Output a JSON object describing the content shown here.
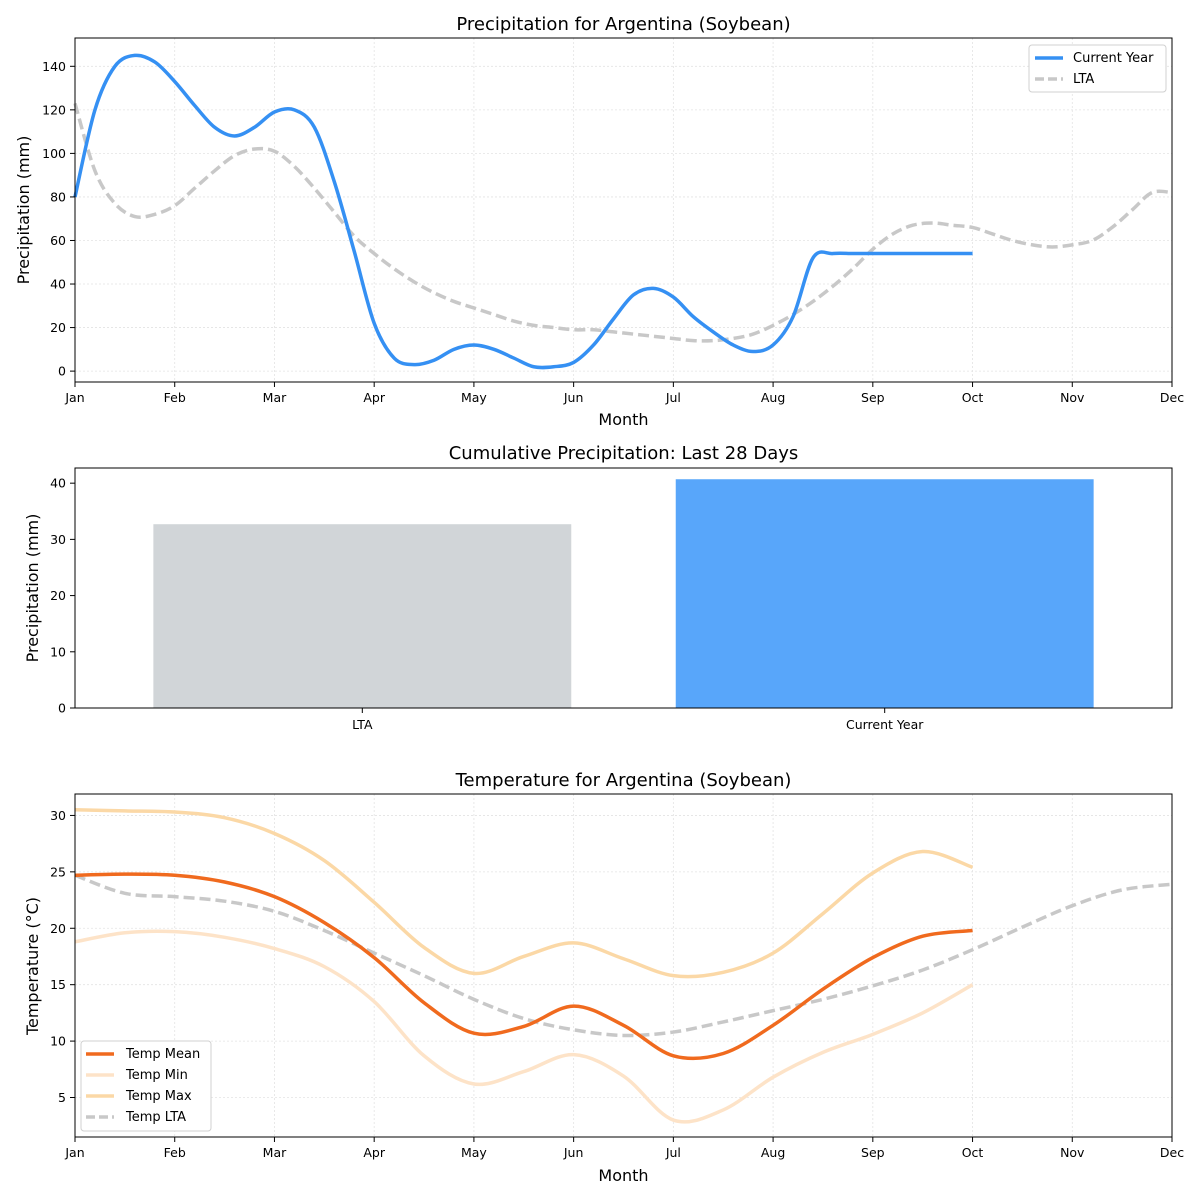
{
  "chart_data": [
    {
      "type": "line",
      "title": "Precipitation for Argentina (Soybean)",
      "xlabel": "Month",
      "ylabel": "Precipitation (mm)",
      "x_ticks": [
        "Jan",
        "Feb",
        "Mar",
        "Apr",
        "May",
        "Jun",
        "Jul",
        "Aug",
        "Sep",
        "Oct",
        "Nov",
        "Dec"
      ],
      "y_ticks": [
        0,
        20,
        40,
        60,
        80,
        100,
        120,
        140
      ],
      "xlim": [
        0,
        11
      ],
      "ylim": [
        -5,
        153
      ],
      "grid": true,
      "legend": "top-right",
      "series": [
        {
          "name": "Current Year",
          "color": "#3590f3",
          "style": "solid",
          "x": [
            0,
            0.2,
            0.4,
            0.6,
            0.8,
            1.0,
            1.2,
            1.4,
            1.6,
            1.8,
            2.0,
            2.2,
            2.4,
            2.6,
            2.8,
            3.0,
            3.2,
            3.4,
            3.6,
            3.8,
            4.0,
            4.2,
            4.4,
            4.6,
            4.8,
            5.0,
            5.2,
            5.4,
            5.6,
            5.8,
            6.0,
            6.2,
            6.4,
            6.6,
            6.8,
            7.0,
            7.2,
            7.4,
            7.6,
            7.8,
            8.0,
            8.2,
            8.4,
            8.6,
            8.8,
            9.0
          ],
          "y": [
            80,
            120,
            140,
            145,
            142,
            133,
            122,
            112,
            108,
            112,
            119,
            120,
            112,
            87,
            55,
            22,
            6,
            3,
            5,
            10,
            12,
            10,
            6,
            2,
            2,
            4,
            12,
            24,
            35,
            38,
            34,
            25,
            18,
            12,
            9,
            12,
            25,
            52,
            54,
            54,
            54,
            54,
            54,
            54,
            54,
            54
          ]
        },
        {
          "name": "LTA",
          "color": "#c8c8c8",
          "style": "dashed",
          "x": [
            0,
            0.2,
            0.4,
            0.6,
            0.8,
            1.0,
            1.2,
            1.4,
            1.6,
            1.8,
            2.0,
            2.2,
            2.4,
            2.6,
            2.8,
            3.0,
            3.2,
            3.4,
            3.6,
            3.8,
            4.0,
            4.2,
            4.4,
            4.6,
            4.8,
            5.0,
            5.2,
            5.4,
            5.6,
            5.8,
            6.0,
            6.2,
            6.4,
            6.6,
            6.8,
            7.0,
            7.2,
            7.4,
            7.6,
            7.8,
            8.0,
            8.2,
            8.4,
            8.6,
            8.8,
            9.0,
            9.2,
            9.4,
            9.6,
            9.8,
            10.0,
            10.2,
            10.4,
            10.6,
            10.8,
            11.0
          ],
          "y": [
            123,
            92,
            77,
            71,
            72,
            76,
            84,
            92,
            99,
            102,
            101,
            94,
            84,
            73,
            62,
            54,
            47,
            41,
            36,
            32,
            29,
            26,
            23,
            21,
            20,
            19,
            19,
            18,
            17,
            16,
            15,
            14,
            14,
            15,
            17,
            21,
            26,
            32,
            39,
            47,
            56,
            63,
            67,
            68,
            67,
            66,
            63,
            60,
            58,
            57,
            58,
            60,
            66,
            74,
            82,
            82
          ]
        }
      ]
    },
    {
      "type": "bar",
      "title": "Cumulative Precipitation: Last 28 Days",
      "xlabel": "",
      "ylabel": "Precipitation (mm)",
      "categories": [
        "LTA",
        "Current Year"
      ],
      "values": [
        32.7,
        40.7
      ],
      "colors": [
        "#d1d5d8",
        "#58a6fa"
      ],
      "y_ticks": [
        0,
        10,
        20,
        30,
        40
      ],
      "ylim": [
        0,
        42.7
      ],
      "grid": false
    },
    {
      "type": "line",
      "title": "Temperature for Argentina (Soybean)",
      "xlabel": "Month",
      "ylabel": "Temperature (°C)",
      "x_ticks": [
        "Jan",
        "Feb",
        "Mar",
        "Apr",
        "May",
        "Jun",
        "Jul",
        "Aug",
        "Sep",
        "Oct",
        "Nov",
        "Dec"
      ],
      "y_ticks": [
        5,
        10,
        15,
        20,
        25,
        30
      ],
      "xlim": [
        0,
        11
      ],
      "ylim": [
        1.5,
        31.9
      ],
      "grid": true,
      "legend": "bottom-left",
      "series": [
        {
          "name": "Temp Mean",
          "color": "#f06a1e",
          "style": "solid",
          "x": [
            0,
            0.5,
            1.0,
            1.5,
            2.0,
            2.5,
            3.0,
            3.5,
            4.0,
            4.5,
            5.0,
            5.5,
            6.0,
            6.5,
            7.0,
            7.5,
            8.0,
            8.5,
            9.0
          ],
          "y": [
            24.7,
            24.8,
            24.7,
            24.1,
            22.8,
            20.5,
            17.4,
            13.4,
            10.7,
            11.3,
            13.1,
            11.4,
            8.7,
            8.9,
            11.4,
            14.6,
            17.4,
            19.3,
            19.8
          ]
        },
        {
          "name": "Temp Min",
          "color": "#fde3c8",
          "style": "solid",
          "x": [
            0,
            0.5,
            1.0,
            1.5,
            2.0,
            2.5,
            3.0,
            3.5,
            4.0,
            4.5,
            5.0,
            5.5,
            6.0,
            6.5,
            7.0,
            7.5,
            8.0,
            8.5,
            9.0
          ],
          "y": [
            18.8,
            19.6,
            19.7,
            19.2,
            18.2,
            16.6,
            13.5,
            8.7,
            6.2,
            7.3,
            8.8,
            6.9,
            3.0,
            3.9,
            6.8,
            9.0,
            10.6,
            12.5,
            15.0
          ]
        },
        {
          "name": "Temp Max",
          "color": "#fbd8a6",
          "style": "solid",
          "x": [
            0,
            0.5,
            1.0,
            1.5,
            2.0,
            2.5,
            3.0,
            3.5,
            4.0,
            4.5,
            5.0,
            5.5,
            6.0,
            6.5,
            7.0,
            7.5,
            8.0,
            8.5,
            9.0
          ],
          "y": [
            30.5,
            30.4,
            30.3,
            29.8,
            28.4,
            26.0,
            22.3,
            18.3,
            16.0,
            17.5,
            18.7,
            17.3,
            15.8,
            16.1,
            17.8,
            21.3,
            24.9,
            26.8,
            25.4
          ]
        },
        {
          "name": "Temp LTA",
          "color": "#c8c8c8",
          "style": "dashed",
          "x": [
            0,
            0.5,
            1.0,
            1.5,
            2.0,
            2.5,
            3.0,
            3.5,
            4.0,
            4.5,
            5.0,
            5.5,
            6.0,
            6.5,
            7.0,
            7.5,
            8.0,
            8.5,
            9.0,
            9.5,
            10.0,
            10.5,
            11.0
          ],
          "y": [
            24.7,
            23.1,
            22.8,
            22.4,
            21.5,
            19.8,
            17.8,
            15.8,
            13.7,
            12.0,
            11.0,
            10.5,
            10.8,
            11.7,
            12.7,
            13.7,
            14.9,
            16.3,
            18.1,
            20.1,
            22.0,
            23.4,
            23.9
          ]
        }
      ]
    }
  ]
}
